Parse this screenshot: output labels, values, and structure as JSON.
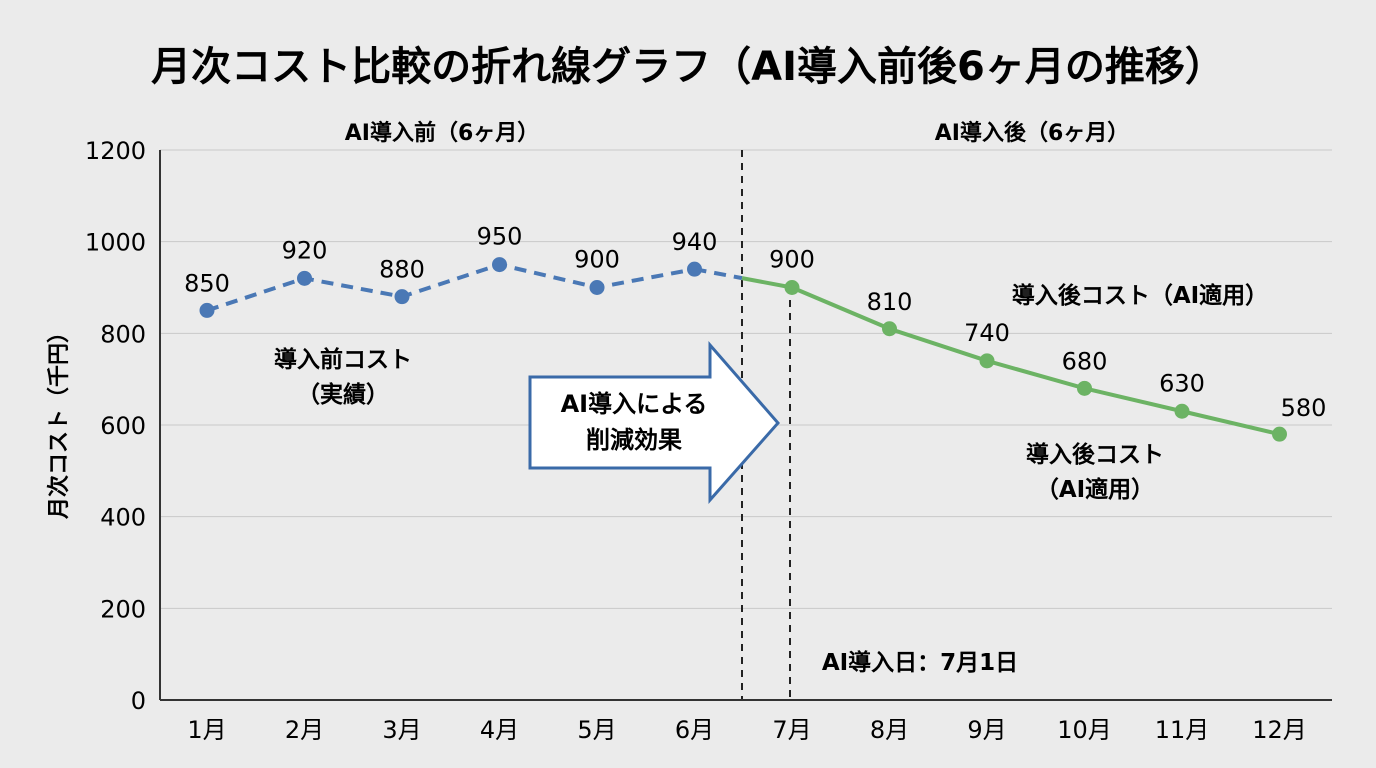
{
  "chart_data": {
    "type": "line",
    "title": "月次コスト比較の折れ線グラフ（AI導入前後6ヶ月の推移）",
    "ylabel": "月次コスト（千円）",
    "xlabel": "",
    "ylim": [
      0,
      1200
    ],
    "yticks": [
      "0",
      "200",
      "400",
      "600",
      "800",
      "1000",
      "1200"
    ],
    "categories": [
      "1月",
      "2月",
      "3月",
      "4月",
      "5月",
      "6月",
      "7月",
      "8月",
      "9月",
      "10月",
      "11月",
      "12月"
    ],
    "grid": true,
    "periods": {
      "before": "AI導入前（6ヶ月）",
      "after": "AI導入後（6ヶ月）"
    },
    "series": [
      {
        "name": "導入前コスト（実績）",
        "color": "#4a78b5",
        "style": "dashed",
        "x": [
          "1月",
          "2月",
          "3月",
          "4月",
          "5月",
          "6月"
        ],
        "values": [
          850,
          920,
          880,
          950,
          900,
          940
        ]
      },
      {
        "name": "導入後コスト（AI適用）",
        "color": "#6cb364",
        "style": "solid",
        "x": [
          "7月",
          "8月",
          "9月",
          "10月",
          "11月",
          "12月"
        ],
        "values": [
          900,
          810,
          740,
          680,
          630,
          580
        ]
      }
    ],
    "annotations": {
      "before_label_1": "導入前コスト",
      "before_label_2": "（実績）",
      "after_label_top": "導入後コスト（AI適用）",
      "after_label_1": "導入後コスト",
      "after_label_2": "（AI適用）",
      "arrow_1": "AI導入による",
      "arrow_2": "削減効果",
      "intro_date": "AI導入日：7月1日"
    }
  }
}
